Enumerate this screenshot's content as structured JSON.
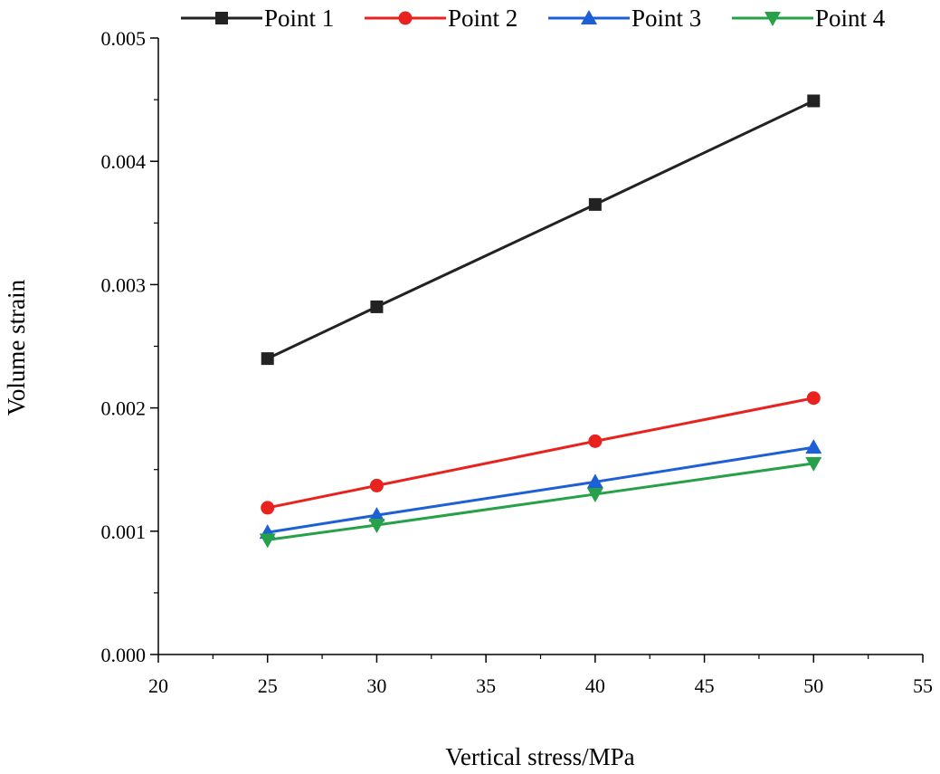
{
  "chart_data": {
    "type": "line",
    "xlabel": "Vertical stress/MPa",
    "ylabel": "Volume strain",
    "xlim": [
      20,
      55
    ],
    "ylim": [
      0.0,
      0.005
    ],
    "xticks": [
      "20",
      "25",
      "30",
      "35",
      "40",
      "45",
      "50",
      "55"
    ],
    "yticks": [
      "0.000",
      "0.001",
      "0.002",
      "0.003",
      "0.004",
      "0.005"
    ],
    "grid": false,
    "legend_position": "top",
    "x": [
      25,
      30,
      40,
      50
    ],
    "series": [
      {
        "name": "Point 1",
        "values": [
          0.0024,
          0.00282,
          0.00365,
          0.00449
        ],
        "color": "#222222",
        "marker": "square"
      },
      {
        "name": "Point 2",
        "values": [
          0.00119,
          0.00137,
          0.00173,
          0.00208
        ],
        "color": "#e8231f",
        "marker": "circle"
      },
      {
        "name": "Point 3",
        "values": [
          0.00099,
          0.00113,
          0.0014,
          0.00168
        ],
        "color": "#1c5fd6",
        "marker": "triangle-up"
      },
      {
        "name": "Point 4",
        "values": [
          0.00093,
          0.00105,
          0.0013,
          0.00155
        ],
        "color": "#27a04a",
        "marker": "triangle-down"
      }
    ]
  }
}
